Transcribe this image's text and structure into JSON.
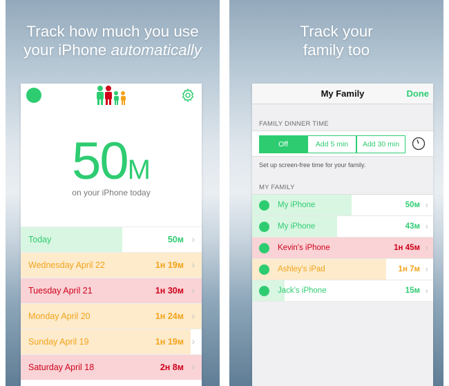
{
  "colors": {
    "green": "#2ecc71",
    "green_bg": "#d9f6e2",
    "orange": "#f2a31b",
    "orange_bg": "#fdebcc",
    "red": "#d0021b",
    "red_bg": "#f9d3d6"
  },
  "left": {
    "headline_line1": "Track how much you use",
    "headline_line2_plain": "your iPhone ",
    "headline_line2_italic": "automatically",
    "header_icons": {
      "status": "green-dot-icon",
      "logo": "family-logo-icon",
      "settings": "gear-icon"
    },
    "total": {
      "number": "50",
      "unit": "M"
    },
    "total_caption": "on your iPhone today",
    "days": [
      {
        "label": "Today",
        "value": "50м",
        "status": "green",
        "fill": 0.56
      },
      {
        "label": "Wednesday April 22",
        "value": "1н 19м",
        "status": "orange",
        "fill": 1.0
      },
      {
        "label": "Tuesday April 21",
        "value": "1н 30м",
        "status": "red",
        "fill": 1.0
      },
      {
        "label": "Monday April 20",
        "value": "1н 24м",
        "status": "orange",
        "fill": 1.0
      },
      {
        "label": "Sunday April 19",
        "value": "1н 19м",
        "status": "orange",
        "fill": 0.94
      },
      {
        "label": "Saturday April 18",
        "value": "2н 8м",
        "status": "red",
        "fill": 1.0
      }
    ]
  },
  "right": {
    "headline_line1": "Track your",
    "headline_line2": "family too",
    "nav_title": "My Family",
    "nav_done": "Done",
    "dinner_header": "FAMILY DINNER TIME",
    "dinner_options": [
      "Off",
      "Add 5 min",
      "Add 30 min"
    ],
    "dinner_selected": "Off",
    "dinner_note": "Set up screen-free time for your family.",
    "family_header": "MY FAMILY",
    "members": [
      {
        "name": "My iPhone",
        "value": "50м",
        "status": "green",
        "fill": 0.55
      },
      {
        "name": "My iPhone",
        "value": "43м",
        "status": "green",
        "fill": 0.47
      },
      {
        "name": "Kevin's iPhone",
        "value": "1н 45м",
        "status": "red",
        "fill": 1.0
      },
      {
        "name": "Ashley's iPad",
        "value": "1н 7м",
        "status": "orange",
        "fill": 0.74
      },
      {
        "name": "Jack's iPhone",
        "value": "15м",
        "status": "green",
        "fill": 0.18
      }
    ]
  }
}
